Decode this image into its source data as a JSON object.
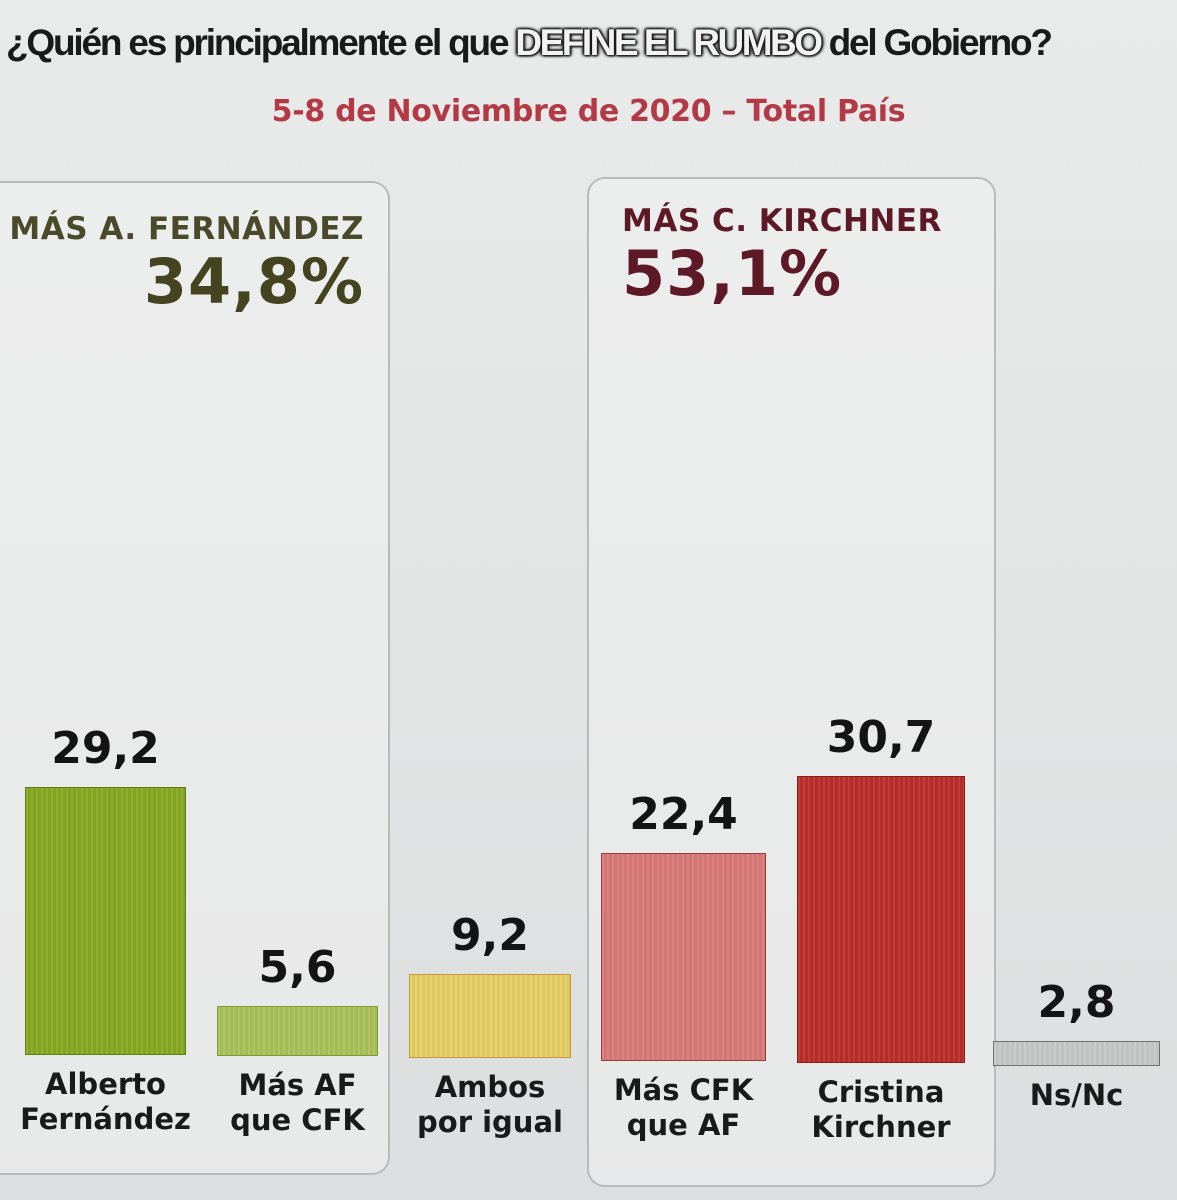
{
  "header": {
    "title_pre": "¿Quién es principalmente el que ",
    "title_highlight": "DEFINE EL RUMBO",
    "title_post": " del Gobierno?",
    "subtitle": "5-8 de Noviembre de 2020 – Total País"
  },
  "groups": [
    {
      "label": "MÁS A. FERNÁNDEZ",
      "value": "34,8%",
      "color": "#444421"
    },
    {
      "label": "MÁS C. KIRCHNER",
      "value": "53,1%",
      "color": "#5d1a26"
    }
  ],
  "bars": [
    {
      "label_line1": "Alberto",
      "label_line2": "Fernández",
      "value_text": "29,2",
      "fill": "#86a821",
      "border": "#5f7d12"
    },
    {
      "label_line1": "Más AF",
      "label_line2": "que CFK",
      "value_text": "5,6",
      "fill": "#a9c15a",
      "border": "#7f9a32"
    },
    {
      "label_line1": "Ambos",
      "label_line2": "por igual",
      "value_text": "9,2",
      "fill": "#e5cf63",
      "border": "#c6953e"
    },
    {
      "label_line1": "Más CFK",
      "label_line2": "que AF",
      "value_text": "22,4",
      "fill": "#d87a78",
      "border": "#9c3a38"
    },
    {
      "label_line1": "Cristina",
      "label_line2": "Kirchner",
      "value_text": "30,7",
      "fill": "#bb2e2b",
      "border": "#8a1d1b"
    },
    {
      "label_line1": "Ns/Nc",
      "label_line2": "",
      "value_text": "2,8",
      "fill": "#c6c8c8",
      "border": "#6f7171"
    }
  ],
  "chart_data": {
    "type": "bar",
    "title": "¿Quién es principalmente el que DEFINE EL RUMBO del Gobierno?",
    "subtitle": "5-8 de Noviembre de 2020 – Total País",
    "categories": [
      "Alberto Fernández",
      "Más AF que CFK",
      "Ambos por igual",
      "Más CFK que AF",
      "Cristina Kirchner",
      "Ns/Nc"
    ],
    "values": [
      29.2,
      5.6,
      9.2,
      22.4,
      30.7,
      2.8
    ],
    "groups": [
      {
        "name": "MÁS A. FERNÁNDEZ",
        "total": 34.8,
        "members": [
          "Alberto Fernández",
          "Más AF que CFK"
        ]
      },
      {
        "name": "MÁS C. KIRCHNER",
        "total": 53.1,
        "members": [
          "Más CFK que AF",
          "Cristina Kirchner"
        ]
      }
    ],
    "xlabel": "",
    "ylabel": "%",
    "ylim": [
      0,
      35
    ],
    "grid": false,
    "legend": "none"
  }
}
